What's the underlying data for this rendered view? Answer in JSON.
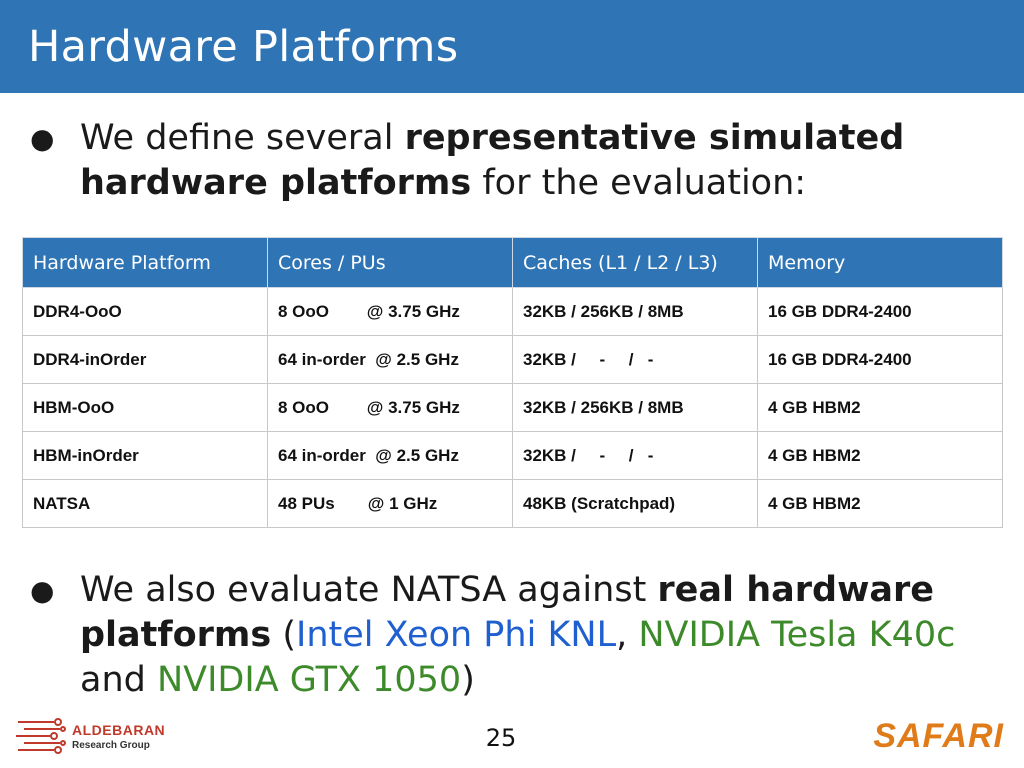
{
  "title": "Hardware Platforms",
  "bullet1": {
    "t1": "We define several ",
    "t2": "representative simulated hardware platforms",
    "t3": " for the evaluation:"
  },
  "table": {
    "headers": [
      "Hardware Platform",
      "Cores / PUs",
      "Caches (L1 / L2 / L3)",
      "Memory"
    ],
    "rows": [
      [
        "DDR4-OoO",
        "8 OoO        @ 3.75 GHz",
        "32KB / 256KB / 8MB",
        "16 GB DDR4-2400"
      ],
      [
        "DDR4-inOrder",
        "64 in-order  @ 2.5 GHz",
        "32KB /     -     /   -",
        "16 GB DDR4-2400"
      ],
      [
        "HBM-OoO",
        "8 OoO        @ 3.75 GHz",
        "32KB / 256KB / 8MB",
        "4 GB HBM2"
      ],
      [
        "HBM-inOrder",
        "64 in-order  @ 2.5 GHz",
        "32KB /     -     /   -",
        "4 GB HBM2"
      ],
      [
        "NATSA",
        "48 PUs       @ 1 GHz",
        "48KB (Scratchpad)",
        "4 GB HBM2"
      ]
    ]
  },
  "bullet2": {
    "t1": "We also evaluate NATSA against ",
    "t2": "real hardware platforms",
    "t3": " (",
    "t4": "Intel Xeon Phi KNL",
    "t5": ", ",
    "t6": "NVIDIA Tesla K40c",
    "t7": " and ",
    "t8": "NVIDIA GTX 1050",
    "t9": ")"
  },
  "bullet_char": "●",
  "footer": {
    "logo_line1": "ALDEBARAN",
    "logo_line2": "Research Group",
    "page_number": "25",
    "brand": "SAFARI"
  },
  "colors": {
    "title_bar": "#2f75b5",
    "header_row": "#2f75b5",
    "link_blue": "#1f5fcf",
    "link_green": "#3c8a2a",
    "brand_orange": "#e07b1a",
    "logo_red": "#c0392b"
  },
  "icons": {
    "logo": "circuit-logo-icon"
  }
}
